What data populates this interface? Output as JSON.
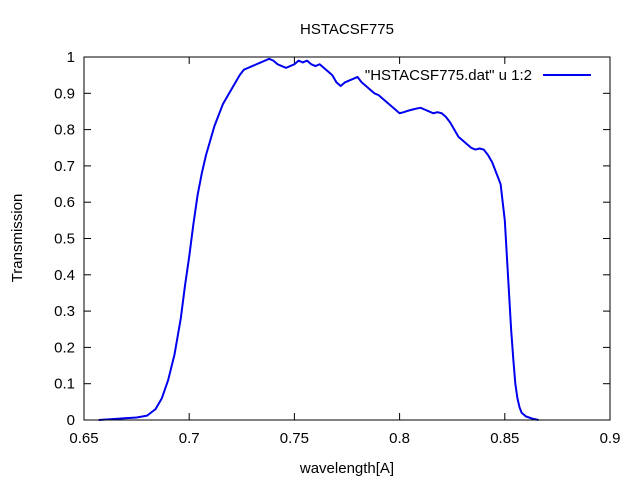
{
  "chart_data": {
    "type": "line",
    "title": "HSTACSF775",
    "xlabel": "wavelength[A]",
    "ylabel": "Transmission",
    "xlim": [
      0.65,
      0.9
    ],
    "ylim": [
      0,
      1
    ],
    "xticks": [
      0.65,
      0.7,
      0.75,
      0.8,
      0.85,
      0.9
    ],
    "xtick_labels": [
      "0.65",
      "0.7",
      "0.75",
      "0.8",
      "0.85",
      "0.9"
    ],
    "yticks": [
      0,
      0.1,
      0.2,
      0.3,
      0.4,
      0.5,
      0.6,
      0.7,
      0.8,
      0.9,
      1
    ],
    "ytick_labels": [
      "0",
      "0.1",
      "0.2",
      "0.3",
      "0.4",
      "0.5",
      "0.6",
      "0.7",
      "0.8",
      "0.9",
      "1"
    ],
    "grid": false,
    "legend_position": "top-right",
    "series": [
      {
        "name": "\"HSTACSF775.dat\" u 1:2",
        "color": "#0000ee",
        "x": [
          0.657,
          0.665,
          0.675,
          0.68,
          0.684,
          0.687,
          0.69,
          0.693,
          0.696,
          0.698,
          0.7,
          0.702,
          0.704,
          0.706,
          0.708,
          0.71,
          0.712,
          0.714,
          0.716,
          0.718,
          0.72,
          0.722,
          0.724,
          0.726,
          0.728,
          0.73,
          0.732,
          0.734,
          0.736,
          0.738,
          0.74,
          0.742,
          0.744,
          0.746,
          0.748,
          0.75,
          0.752,
          0.754,
          0.756,
          0.758,
          0.76,
          0.762,
          0.764,
          0.766,
          0.768,
          0.77,
          0.772,
          0.774,
          0.776,
          0.778,
          0.78,
          0.782,
          0.784,
          0.786,
          0.788,
          0.79,
          0.792,
          0.794,
          0.796,
          0.798,
          0.8,
          0.802,
          0.804,
          0.806,
          0.808,
          0.81,
          0.812,
          0.814,
          0.816,
          0.818,
          0.82,
          0.822,
          0.824,
          0.826,
          0.828,
          0.83,
          0.832,
          0.834,
          0.836,
          0.838,
          0.84,
          0.842,
          0.844,
          0.846,
          0.848,
          0.85,
          0.851,
          0.852,
          0.853,
          0.854,
          0.855,
          0.856,
          0.857,
          0.858,
          0.86,
          0.863,
          0.866
        ],
        "y": [
          0.0,
          0.003,
          0.007,
          0.012,
          0.03,
          0.06,
          0.11,
          0.18,
          0.28,
          0.37,
          0.45,
          0.54,
          0.62,
          0.68,
          0.73,
          0.77,
          0.81,
          0.84,
          0.87,
          0.89,
          0.91,
          0.93,
          0.95,
          0.965,
          0.97,
          0.975,
          0.98,
          0.985,
          0.99,
          0.995,
          0.99,
          0.98,
          0.975,
          0.97,
          0.975,
          0.98,
          0.99,
          0.985,
          0.99,
          0.98,
          0.975,
          0.98,
          0.97,
          0.96,
          0.95,
          0.93,
          0.92,
          0.93,
          0.935,
          0.94,
          0.945,
          0.93,
          0.92,
          0.91,
          0.9,
          0.895,
          0.885,
          0.875,
          0.865,
          0.855,
          0.845,
          0.848,
          0.852,
          0.855,
          0.858,
          0.86,
          0.855,
          0.85,
          0.845,
          0.848,
          0.845,
          0.835,
          0.82,
          0.8,
          0.78,
          0.77,
          0.76,
          0.75,
          0.745,
          0.748,
          0.745,
          0.73,
          0.71,
          0.68,
          0.65,
          0.55,
          0.45,
          0.35,
          0.25,
          0.17,
          0.1,
          0.06,
          0.035,
          0.02,
          0.01,
          0.004,
          0.0
        ]
      }
    ]
  }
}
